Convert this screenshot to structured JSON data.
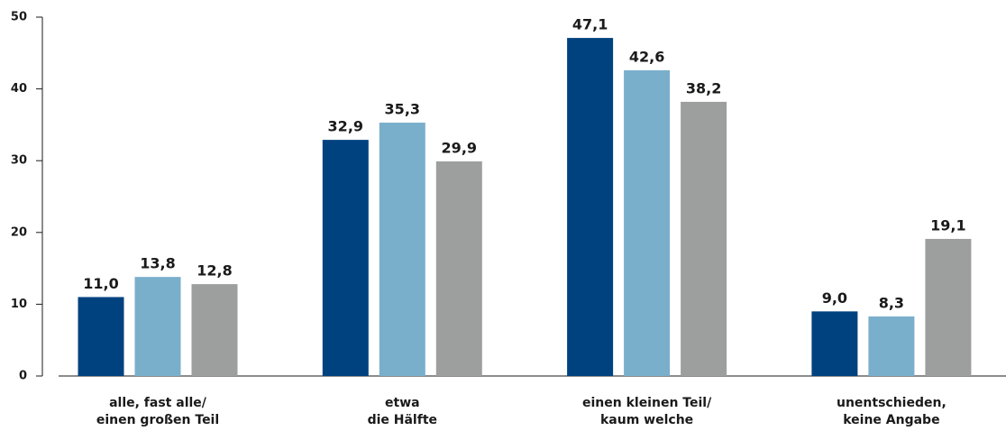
{
  "chart_data": {
    "type": "bar",
    "categories": [
      [
        "alle, fast alle/",
        "einen großen Teil"
      ],
      [
        "etwa",
        "die Hälfte"
      ],
      [
        "einen kleinen Teil/",
        "kaum welche"
      ],
      [
        "unentschieden,",
        "keine Angabe"
      ]
    ],
    "series": [
      {
        "color": "#00427f",
        "values": [
          11.0,
          32.9,
          47.1,
          9.0
        ],
        "value_labels": [
          "11,0",
          "32,9",
          "47,1",
          "9,0"
        ]
      },
      {
        "color": "#7aafcc",
        "values": [
          13.8,
          35.3,
          42.6,
          8.3
        ],
        "value_labels": [
          "13,8",
          "35,3",
          "42,6",
          "8,3"
        ]
      },
      {
        "color": "#9d9e9e",
        "values": [
          12.8,
          29.9,
          38.2,
          19.1
        ],
        "value_labels": [
          "12,8",
          "29,9",
          "38,2",
          "19,1"
        ]
      }
    ],
    "ylim": [
      0,
      50
    ],
    "yticks": [
      0,
      10,
      20,
      30,
      40,
      50
    ]
  }
}
